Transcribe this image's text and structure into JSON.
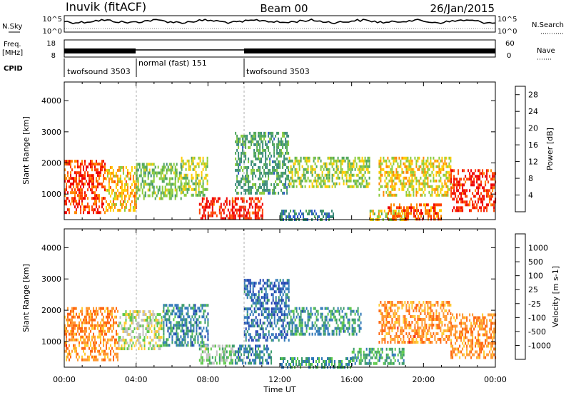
{
  "header": {
    "radar_title": "Inuvik (fitACF)",
    "beam_label": "Beam 00",
    "date_label": "26/Jan/2015"
  },
  "summary": {
    "nsky_label": "N.Sky",
    "nsearch_label": "N.Search",
    "freq_label_top": "Freq.",
    "freq_label_bottom": "[MHz]",
    "nave_label": "Nave",
    "cpid_label": "CPID",
    "noise_ticks": [
      "10^5",
      "10^0"
    ],
    "freq_ticks": [
      "18",
      "8"
    ],
    "nave_ticks": [
      "60",
      "0"
    ],
    "cpid_segments": [
      {
        "label": "twofsound 3503",
        "start_hour": 0,
        "end_hour": 4
      },
      {
        "label": "normal (fast) 151",
        "start_hour": 4,
        "end_hour": 10
      },
      {
        "label": "twofsound 3503",
        "start_hour": 10,
        "end_hour": 24
      }
    ]
  },
  "chart_data": [
    {
      "type": "heatmap",
      "panel": "power",
      "xlabel": "Time UT",
      "ylabel": "Slant Range [km]",
      "x_range_hours": [
        0,
        24
      ],
      "ylim": [
        180,
        4600
      ],
      "y_ticks": [
        1000,
        2000,
        3000,
        4000
      ],
      "x_tick_labels": [
        "00:00",
        "04:00",
        "08:00",
        "12:00",
        "16:00",
        "20:00",
        "00:00"
      ],
      "colorbar": {
        "label": "Power [dB]",
        "ticks": [
          4,
          8,
          12,
          16,
          20,
          24,
          28
        ],
        "range": [
          0,
          30
        ],
        "colors": [
          "#1a1aff",
          "#2f5ac8",
          "#3a8a7a",
          "#4fa65a",
          "#8ccc3a",
          "#ffcc00",
          "#ff8800",
          "#ff4400",
          "#ee0000"
        ]
      },
      "scatter_regions": [
        {
          "start_hour": 0.0,
          "end_hour": 2.3,
          "range_low": 400,
          "range_high": 2100,
          "level": 0.85
        },
        {
          "start_hour": 2.3,
          "end_hour": 4.0,
          "range_low": 500,
          "range_high": 1900,
          "level": 0.65
        },
        {
          "start_hour": 4.0,
          "end_hour": 6.5,
          "range_low": 900,
          "range_high": 2000,
          "level": 0.45
        },
        {
          "start_hour": 6.5,
          "end_hour": 8.0,
          "range_low": 1000,
          "range_high": 2200,
          "level": 0.5
        },
        {
          "start_hour": 7.5,
          "end_hour": 11.0,
          "range_low": 200,
          "range_high": 900,
          "level": 0.9
        },
        {
          "start_hour": 9.5,
          "end_hour": 12.5,
          "range_low": 1000,
          "range_high": 3000,
          "level": 0.35
        },
        {
          "start_hour": 12.0,
          "end_hour": 15.0,
          "range_low": 200,
          "range_high": 500,
          "level": 0.25
        },
        {
          "start_hour": 12.5,
          "end_hour": 17.0,
          "range_low": 1200,
          "range_high": 2200,
          "level": 0.5
        },
        {
          "start_hour": 17.0,
          "end_hour": 19.0,
          "range_low": 200,
          "range_high": 500,
          "level": 0.55
        },
        {
          "start_hour": 18.0,
          "end_hour": 21.0,
          "range_low": 200,
          "range_high": 700,
          "level": 0.8
        },
        {
          "start_hour": 17.5,
          "end_hour": 21.5,
          "range_low": 1000,
          "range_high": 2200,
          "level": 0.6
        },
        {
          "start_hour": 21.5,
          "end_hour": 24.0,
          "range_low": 500,
          "range_high": 1800,
          "level": 0.9
        }
      ]
    },
    {
      "type": "heatmap",
      "panel": "velocity",
      "xlabel": "Time UT",
      "ylabel": "Slant Range [km]",
      "x_range_hours": [
        0,
        24
      ],
      "ylim": [
        180,
        4600
      ],
      "y_ticks": [
        1000,
        2000,
        3000,
        4000
      ],
      "x_tick_labels": [
        "00:00",
        "04:00",
        "08:00",
        "12:00",
        "16:00",
        "20:00",
        "00:00"
      ],
      "colorbar": {
        "label": "Velocity [m s-1]",
        "ticks": [
          "1000",
          "500",
          "100",
          "25",
          "-25",
          "-100",
          "-500",
          "-1000"
        ],
        "colors": [
          "#1f3fb0",
          "#2f78b8",
          "#3a9a6a",
          "#5cc84a",
          "#c0c0c0",
          "#ffcc33",
          "#ff9933",
          "#ff6611",
          "#ee1111"
        ]
      },
      "scatter_regions": [
        {
          "start_hour": 0.0,
          "end_hour": 3.0,
          "range_low": 400,
          "range_high": 2100,
          "level": 0.75
        },
        {
          "start_hour": 3.0,
          "end_hour": 5.5,
          "range_low": 800,
          "range_high": 2000,
          "level": 0.5
        },
        {
          "start_hour": 5.5,
          "end_hour": 8.0,
          "range_low": 900,
          "range_high": 2200,
          "level": 0.22
        },
        {
          "start_hour": 7.5,
          "end_hour": 9.5,
          "range_low": 300,
          "range_high": 900,
          "level": 0.42
        },
        {
          "start_hour": 9.5,
          "end_hour": 11.5,
          "range_low": 300,
          "range_high": 900,
          "level": 0.2
        },
        {
          "start_hour": 10.0,
          "end_hour": 12.5,
          "range_low": 1000,
          "range_high": 3000,
          "level": 0.15
        },
        {
          "start_hour": 12.5,
          "end_hour": 16.5,
          "range_low": 1200,
          "range_high": 2100,
          "level": 0.25
        },
        {
          "start_hour": 12.0,
          "end_hour": 16.0,
          "range_low": 200,
          "range_high": 500,
          "level": 0.25
        },
        {
          "start_hour": 16.0,
          "end_hour": 19.0,
          "range_low": 300,
          "range_high": 800,
          "level": 0.3
        },
        {
          "start_hour": 17.5,
          "end_hour": 21.5,
          "range_low": 1000,
          "range_high": 2300,
          "level": 0.75
        },
        {
          "start_hour": 21.5,
          "end_hour": 24.0,
          "range_low": 500,
          "range_high": 1900,
          "level": 0.75
        }
      ]
    }
  ]
}
